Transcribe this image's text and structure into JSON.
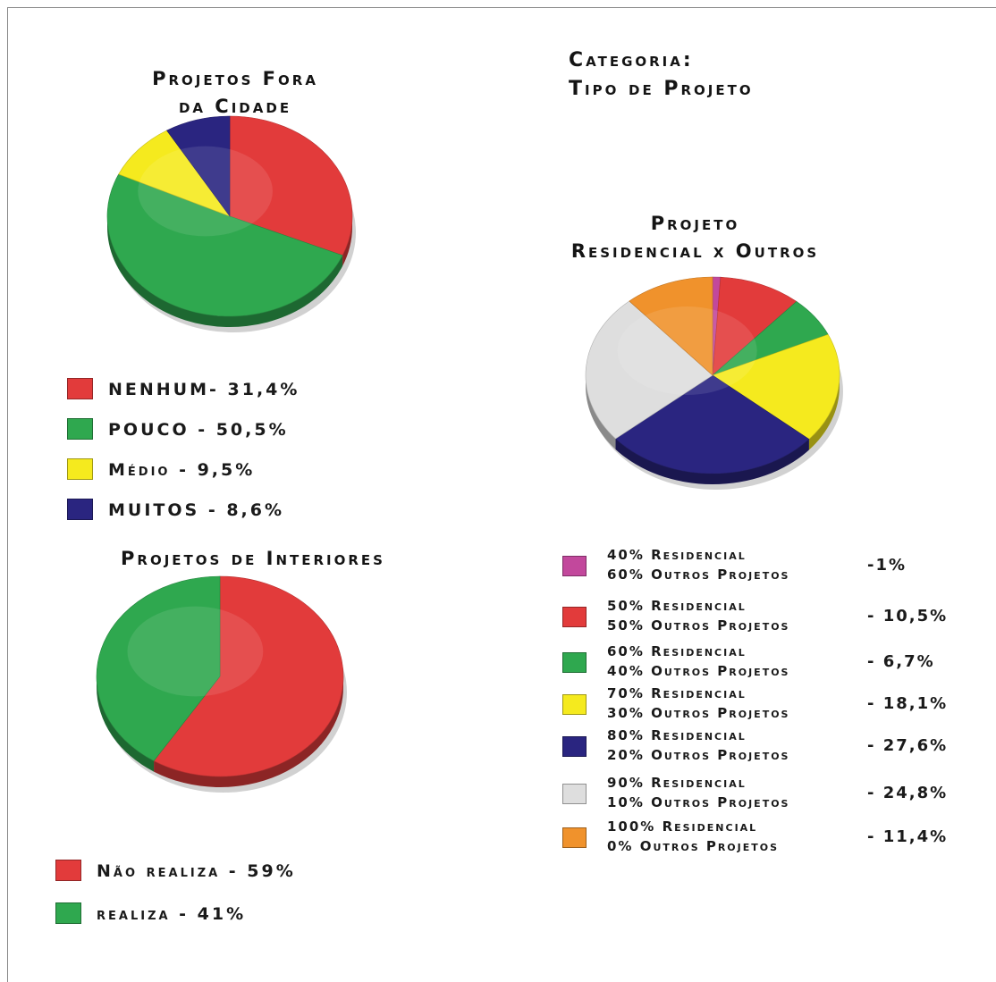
{
  "header": {
    "line1": "Categoria:",
    "line2": "Tipo de Projeto"
  },
  "chart_data": [
    {
      "type": "pie",
      "title_line1": "Projetos Fora",
      "title_line2": "da Cidade",
      "slices": [
        {
          "label": "NENHUM",
          "legend_text": "NENHUM- 31,4%",
          "value": 31.4,
          "color": "#e23b3b"
        },
        {
          "label": "POUCO",
          "legend_text": "POUCO - 50,5%",
          "value": 50.5,
          "color": "#2fa84f"
        },
        {
          "label": "Médio",
          "legend_text": "Médio - 9,5%",
          "value": 9.5,
          "color": "#f5ea1e"
        },
        {
          "label": "MUITOS",
          "legend_text": "MUITOS - 8,6%",
          "value": 8.6,
          "color": "#2a2580"
        }
      ]
    },
    {
      "type": "pie",
      "title_line1": "Projetos de Interiores",
      "title_line2": "",
      "slices": [
        {
          "label": "Não realiza",
          "legend_text": "Não realiza - 59%",
          "value": 59,
          "color": "#e23b3b"
        },
        {
          "label": "realiza",
          "legend_text": "realiza - 41%",
          "value": 41,
          "color": "#2fa84f"
        }
      ]
    },
    {
      "type": "pie",
      "title_line1": "Projeto",
      "title_line2": "Residencial x Outros",
      "slices": [
        {
          "line1": "40% Residencial",
          "line2": "60% Outros Projetos",
          "pct_text": "-1%",
          "value": 1,
          "color": "#c2489c"
        },
        {
          "line1": "50% Residencial",
          "line2": "50% Outros Projetos",
          "pct_text": "- 10,5%",
          "value": 10.5,
          "color": "#e23b3b"
        },
        {
          "line1": "60% Residencial",
          "line2": "40% Outros Projetos",
          "pct_text": "- 6,7%",
          "value": 6.7,
          "color": "#2fa84f"
        },
        {
          "line1": "70% Residencial",
          "line2": "30% Outros Projetos",
          "pct_text": "- 18,1%",
          "value": 18.1,
          "color": "#f5ea1e"
        },
        {
          "line1": "80% Residencial",
          "line2": "20% Outros Projetos",
          "pct_text": "- 27,6%",
          "value": 27.6,
          "color": "#2a2580"
        },
        {
          "line1": "90% Residencial",
          "line2": "10% Outros Projetos",
          "pct_text": "- 24,8%",
          "value": 24.8,
          "color": "#dedede"
        },
        {
          "line1": "100% Residencial",
          "line2": "0% Outros Projetos",
          "pct_text": "- 11,4%",
          "value": 11.4,
          "color": "#f0922c"
        }
      ]
    }
  ]
}
